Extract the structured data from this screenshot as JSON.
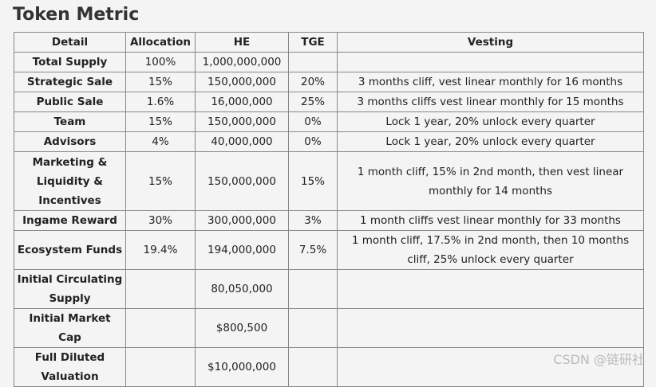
{
  "header": {
    "title": "Token Metric"
  },
  "table": {
    "columns": [
      "Detail",
      "Allocation",
      "HE",
      "TGE",
      "Vesting"
    ],
    "rows": [
      [
        "Total Supply",
        "100%",
        "1,000,000,000",
        null,
        null
      ],
      [
        "Strategic Sale",
        "15%",
        "150,000,000",
        "20%",
        "3 months cliff, vest linear monthly for 16 months"
      ],
      [
        "Public Sale",
        "1.6%",
        "16,000,000",
        "25%",
        "3 months cliffs vest linear monthly for 15 months"
      ],
      [
        "Team",
        "15%",
        "150,000,000",
        "0%",
        "Lock 1 year, 20% unlock every quarter"
      ],
      [
        "Advisors",
        "4%",
        "40,000,000",
        "0%",
        "Lock 1 year, 20% unlock every quarter"
      ],
      [
        "Marketing & Liquidity & Incentives",
        "15%",
        "150,000,000",
        "15%",
        "1 month cliff, 15% in 2nd month, then vest linear monthly for 14 months"
      ],
      [
        "Ingame Reward",
        "30%",
        "300,000,000",
        "3%",
        "1 month cliffs vest linear monthly for 33 months"
      ],
      [
        "Ecosystem Funds",
        "19.4%",
        "194,000,000",
        "7.5%",
        "1 month cliff, 17.5% in 2nd month, then 10 months cliff, 25% unlock every quarter"
      ],
      [
        "Initial Circulating Supply",
        null,
        "80,050,000",
        null,
        null
      ],
      [
        "Initial Market Cap",
        null,
        "$800,500",
        null,
        null
      ],
      [
        "Full Diluted Valuation",
        null,
        "$10,000,000",
        null,
        null
      ]
    ]
  },
  "watermark": "CSDN @链研社"
}
